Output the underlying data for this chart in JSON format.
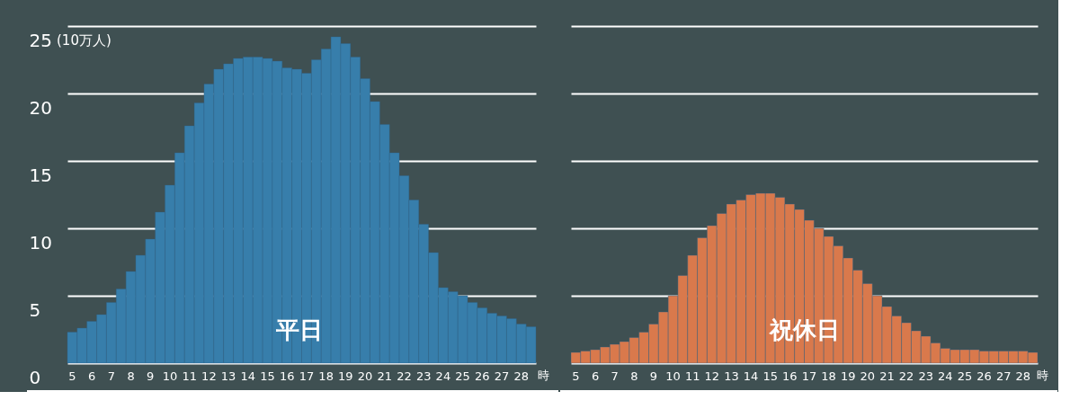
{
  "chart_data": [
    {
      "type": "bar",
      "ylabel": "(10万人)",
      "xlabel": "時",
      "categories": [
        "5",
        null,
        "6",
        null,
        "7",
        null,
        "8",
        null,
        "9",
        null,
        "10",
        null,
        "11",
        null,
        "12",
        null,
        "13",
        null,
        "14",
        null,
        "15",
        null,
        "16",
        null,
        "17",
        null,
        "18",
        null,
        "19",
        null,
        "20",
        null,
        "21",
        null,
        "22",
        null,
        "23",
        null,
        "24",
        null,
        "25",
        null,
        "26",
        null,
        "27",
        null,
        "28",
        null
      ],
      "ylim": [
        0,
        25
      ],
      "yticks": [
        0,
        5,
        10,
        15,
        20,
        25
      ],
      "grid": "y",
      "series": [
        {
          "name": "平日",
          "color": "#377eab",
          "values": [
            2.3,
            2.6,
            3.1,
            3.6,
            4.5,
            5.5,
            6.8,
            8.0,
            9.2,
            11.2,
            13.2,
            15.6,
            17.6,
            19.3,
            20.7,
            21.8,
            22.2,
            22.6,
            22.7,
            22.7,
            22.6,
            22.4,
            21.9,
            21.8,
            21.5,
            22.5,
            23.3,
            24.2,
            23.7,
            22.7,
            21.1,
            19.4,
            17.7,
            15.6,
            13.9,
            12.1,
            10.3,
            8.2,
            5.6,
            5.3,
            5.0,
            4.5,
            4.1,
            3.7,
            3.5,
            3.3,
            2.9,
            2.7
          ]
        }
      ]
    },
    {
      "type": "bar",
      "xlabel": "時",
      "categories": [
        "5",
        null,
        "6",
        null,
        "7",
        null,
        "8",
        null,
        "9",
        null,
        "10",
        null,
        "11",
        null,
        "12",
        null,
        "13",
        null,
        "14",
        null,
        "15",
        null,
        "16",
        null,
        "17",
        null,
        "18",
        null,
        "19",
        null,
        "20",
        null,
        "21",
        null,
        "22",
        null,
        "23",
        null,
        "24",
        null,
        "25",
        null,
        "26",
        null,
        "27",
        null,
        "28",
        null
      ],
      "ylim": [
        0,
        25
      ],
      "yticks": [
        0,
        5,
        10,
        15,
        20,
        25
      ],
      "grid": "y",
      "tick_labels": "x",
      "series": [
        {
          "name": "祝休日",
          "color": "#d9794c",
          "values": [
            0.8,
            0.9,
            1.0,
            1.2,
            1.4,
            1.6,
            1.9,
            2.3,
            2.9,
            3.8,
            5.0,
            6.5,
            8.0,
            9.3,
            10.2,
            11.1,
            11.8,
            12.1,
            12.5,
            12.6,
            12.6,
            12.3,
            11.8,
            11.4,
            10.6,
            10.0,
            9.4,
            8.7,
            7.8,
            6.9,
            5.9,
            5.0,
            4.2,
            3.5,
            3.0,
            2.4,
            2.0,
            1.5,
            1.1,
            1.0,
            1.0,
            1.0,
            0.9,
            0.9,
            0.9,
            0.9,
            0.9,
            0.8
          ]
        }
      ]
    }
  ]
}
